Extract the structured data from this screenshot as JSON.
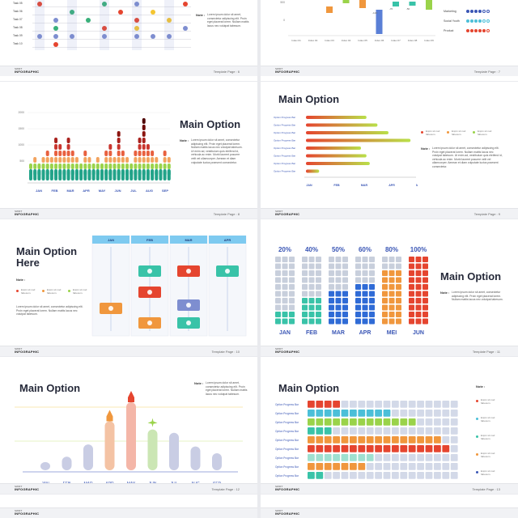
{
  "brand": {
    "top": "SWIFT",
    "name": "INFOGRAPHIC"
  },
  "common": {
    "main_option": "Main Option",
    "note": "Note :",
    "lorem": "Lorem ipsum dolor sit amet, consectetur adipiscing elit. Proin eget placerat lorem. Nullam mattis lacus nec volutpat tabesum.",
    "lorem_long": "Lorem ipsum dolor sit amet, consectetur adipiscing elit. Proin eget placerat lorem. Nullam mattis lacus nec volutpat tabesum. Ut enim ad, vestibulum quis eleifend id, vehicula ac enim. Morbi laoreet posuere velit vel ullamcorper. Aenean et diam vulputate luctus praesent consectetur.",
    "legend_text": "Enpin sit nod fabesum.",
    "option_bar": "Option Progress Bar"
  },
  "pages": {
    "p6": "Template Page : 6",
    "p7": "Template Page : 7",
    "p8": "Template Page : 8",
    "p9": "Template Page : 9",
    "p10": "Template Page : 10",
    "p11": "Template Page : 11",
    "p12": "Template Page : 12",
    "p13": "Template Page : 13"
  },
  "top_left": {
    "tasks": [
      "Task 05",
      "Task 06",
      "Task 07",
      "Task 08",
      "Task 09",
      "Task 10"
    ],
    "note_text": "Lorem ipsum dolor sit amet, consectetur adipiscing elit. Proin eget placerat lorem. Nullam mattis lacus nec volutpat tabesum."
  },
  "top_right": {
    "chart_data": {
      "type": "bar",
      "categories": [
        "Index 01",
        "Index 02",
        "Index 03",
        "Index 04",
        "Index 05",
        "Index 06",
        "Index 07",
        "Index 08",
        "Index 09"
      ],
      "yticks": [
        "500",
        "0"
      ],
      "labels": [
        "-120",
        "-70",
        "-50"
      ]
    },
    "skills": [
      {
        "label": "Marketing",
        "filled": 4,
        "total": 6,
        "color": "#3a56b5"
      },
      {
        "label": "Social Youth",
        "filled": 4,
        "total": 6,
        "color": "#4bbfd8"
      },
      {
        "label": "Product",
        "filled": 5,
        "total": 6,
        "color": "#e5452f"
      }
    ]
  },
  "slide8": {
    "chart_data": {
      "type": "bar",
      "categories": [
        "JAN",
        "FEB",
        "MAR",
        "APR",
        "MAY",
        "JUN",
        "JUL",
        "AUG",
        "SEP"
      ],
      "yticks": [
        "2000",
        "1500",
        "1000",
        "500"
      ],
      "stack_heights": [
        2,
        3,
        2,
        3,
        4,
        3,
        6,
        5,
        4,
        6,
        4,
        3,
        2,
        4,
        3,
        2,
        3,
        2,
        4,
        5,
        3,
        7,
        4,
        3,
        2,
        4,
        6,
        9,
        5,
        4,
        3,
        2,
        4,
        3
      ],
      "stack_colors": [
        "#22a389",
        "#9ad34a",
        "#f3a35e",
        "#e8603f",
        "#c9352e",
        "#a9221e",
        "#8b1510",
        "#6d0a08",
        "#4f0403"
      ]
    }
  },
  "slide9": {
    "bars": [
      0.55,
      0.65,
      0.75,
      0.95,
      0.5,
      0.55,
      0.58,
      0.12
    ],
    "months": [
      "JAN",
      "FEB",
      "MAR",
      "APR",
      "MAY"
    ],
    "legend": [
      {
        "color": "#e5452f",
        "text": "Enpin sit nod fabesum."
      },
      {
        "color": "#f0973d",
        "text": "Enpin sit nod fabesum."
      },
      {
        "color": "#9ad34a",
        "text": "Enpin sit nod fabesum."
      }
    ]
  },
  "slide10": {
    "title": "Main Option Here",
    "months": [
      "JAN",
      "FEB",
      "MAR",
      "APR"
    ],
    "legend": [
      {
        "color": "#e5452f",
        "text": "Enpin sit nod fabesum."
      },
      {
        "color": "#f0973d",
        "text": "Enpin sit nod fabesum."
      },
      {
        "color": "#9ad34a",
        "text": "Enpin sit nod fabesum."
      }
    ]
  },
  "slide11": {
    "cols": [
      {
        "pct": "20%",
        "month": "JAN",
        "filled": 2,
        "color": "#39c3a8"
      },
      {
        "pct": "40%",
        "month": "FEB",
        "filled": 4,
        "color": "#39c3a8"
      },
      {
        "pct": "50%",
        "month": "MAR",
        "filled": 5,
        "color": "#2f6bd6"
      },
      {
        "pct": "60%",
        "month": "APR",
        "filled": 6,
        "color": "#2f6bd6"
      },
      {
        "pct": "80%",
        "month": "MEI",
        "filled": 8,
        "color": "#f0973d"
      },
      {
        "pct": "100%",
        "month": "JUN",
        "filled": 10,
        "color": "#e5452f"
      }
    ]
  },
  "slide12": {
    "months": [
      "JAN",
      "FEB",
      "MAR",
      "APR",
      "MAY",
      "JUN",
      "JUL",
      "AUG",
      "SEP"
    ],
    "heights": [
      0.12,
      0.2,
      0.38,
      0.72,
      1.0,
      0.6,
      0.55,
      0.35,
      0.25
    ]
  },
  "slide13": {
    "rows": [
      {
        "filled": 4,
        "color": "#e5452f"
      },
      {
        "filled": 10,
        "color": "#4bbfd8"
      },
      {
        "filled": 13,
        "color": "#9ad34a"
      },
      {
        "filled": 3,
        "color": "#39c3a8"
      },
      {
        "filled": 16,
        "color": "#f0973d"
      },
      {
        "filled": 17,
        "color": "#e5452f"
      },
      {
        "filled": 8,
        "color": "#9fe0d0"
      },
      {
        "filled": 7,
        "color": "#f0973d"
      },
      {
        "filled": 2,
        "color": "#39c3a8"
      }
    ],
    "legend": [
      {
        "color": "#e5452f",
        "text": "Enpin sit nod fabesum."
      },
      {
        "color": "#4bbfd8",
        "text": "Enpin sit nod fabesum."
      },
      {
        "color": "#39c3a8",
        "text": "Enpin sit nod fabesum."
      },
      {
        "color": "#f0973d",
        "text": "Enpin sit nod fabesum."
      },
      {
        "color": "#3a56b5",
        "text": "Enpin sit nod fabesum."
      }
    ]
  }
}
